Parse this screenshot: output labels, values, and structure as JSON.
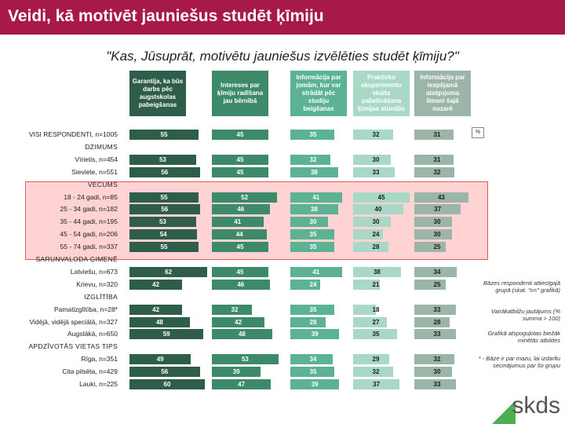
{
  "page": {
    "title": "Veidi, kā motivēt jauniešus studēt ķīmiju",
    "question": "\"Kas, Jūsuprāt, motivētu jauniešus izvēlēties studēt ķīmiju?\"",
    "unit": "%",
    "notes": [
      "Bāzes respondenti attiecīgajā grupā (skat. \"n=\" grafikā)",
      "Vairākatbilžu jautājums (% summa > 100)",
      "Grafikā atspoguļotas biežāk minētās atbildes",
      "* - Bāze ir par mazu, lai izdarītu secinājumus par šo grupu"
    ],
    "logo": "skds"
  },
  "colors": {
    "title_bg": "#a7194a",
    "col1": "#2e5e4a",
    "col2": "#3c8a6a",
    "col3": "#5cb394",
    "col4": "#a9d9c6",
    "col5": "#9bb5a8",
    "highlight": "#ff8282"
  },
  "chart_data": {
    "type": "bar",
    "title": "\"Kas, Jūsuprāt, motivētu jauniešus izvēlēties studēt ķīmiju?\"",
    "series": [
      {
        "name": "Garantija, ka būs darbs pēc augstskolas pabeigšanas"
      },
      {
        "name": "Intereses par ķīmiju radīšana jau bērnībā"
      },
      {
        "name": "Informācija par jomām, kur var strādāt pēc studiju beigšanas"
      },
      {
        "name": "Praktisko eksperimentu skaita palielināšana ķīmijas stundās"
      },
      {
        "name": "Informācija par iespējamā atalgojuma līmeni šajā nozarē"
      }
    ],
    "rows": [
      {
        "label": "VISI RESPONDENTI, n=1005",
        "values": [
          55,
          45,
          35,
          32,
          31
        ]
      },
      {
        "label": "DZIMUMS",
        "group": true
      },
      {
        "label": "Vīrietis, n=454",
        "values": [
          53,
          45,
          32,
          30,
          31
        ]
      },
      {
        "label": "Sieviete, n=551",
        "values": [
          56,
          45,
          38,
          33,
          32
        ]
      },
      {
        "label": "VECUMS",
        "group": true
      },
      {
        "label": "18 - 24 gadi, n=85",
        "values": [
          55,
          52,
          41,
          45,
          43
        ]
      },
      {
        "label": "25 - 34 gadi, n=182",
        "values": [
          56,
          46,
          38,
          40,
          37
        ]
      },
      {
        "label": "35 - 44 gadi, n=195",
        "values": [
          53,
          41,
          30,
          30,
          30
        ]
      },
      {
        "label": "45 - 54 gadi, n=206",
        "values": [
          54,
          44,
          35,
          24,
          30
        ]
      },
      {
        "label": "55 - 74 gadi, n=337",
        "values": [
          55,
          45,
          35,
          28,
          25
        ]
      },
      {
        "label": "SARUNVALODA ĢIMENĒ",
        "group": true
      },
      {
        "label": "Latviešu, n=673",
        "values": [
          62,
          45,
          41,
          38,
          34
        ]
      },
      {
        "label": "Krievu, n=320",
        "values": [
          42,
          46,
          24,
          21,
          25
        ]
      },
      {
        "label": "IZGLĪTĪBA",
        "group": true
      },
      {
        "label": "Pamatizglītība, n=28*",
        "values": [
          42,
          32,
          35,
          18,
          33
        ]
      },
      {
        "label": "Vidējā, vidējā speciālā, n=327",
        "values": [
          48,
          42,
          28,
          27,
          28
        ]
      },
      {
        "label": "Augstākā, n=650",
        "values": [
          59,
          48,
          39,
          35,
          33
        ]
      },
      {
        "label": "APDZĪVOTĀS VIETAS TIPS",
        "group": true
      },
      {
        "label": "Rīga, n=351",
        "values": [
          49,
          53,
          34,
          29,
          32
        ]
      },
      {
        "label": "Cita pilsēta, n=429",
        "values": [
          56,
          39,
          35,
          32,
          30
        ]
      },
      {
        "label": "Lauki, n=225",
        "values": [
          60,
          47,
          39,
          37,
          33
        ]
      }
    ]
  }
}
